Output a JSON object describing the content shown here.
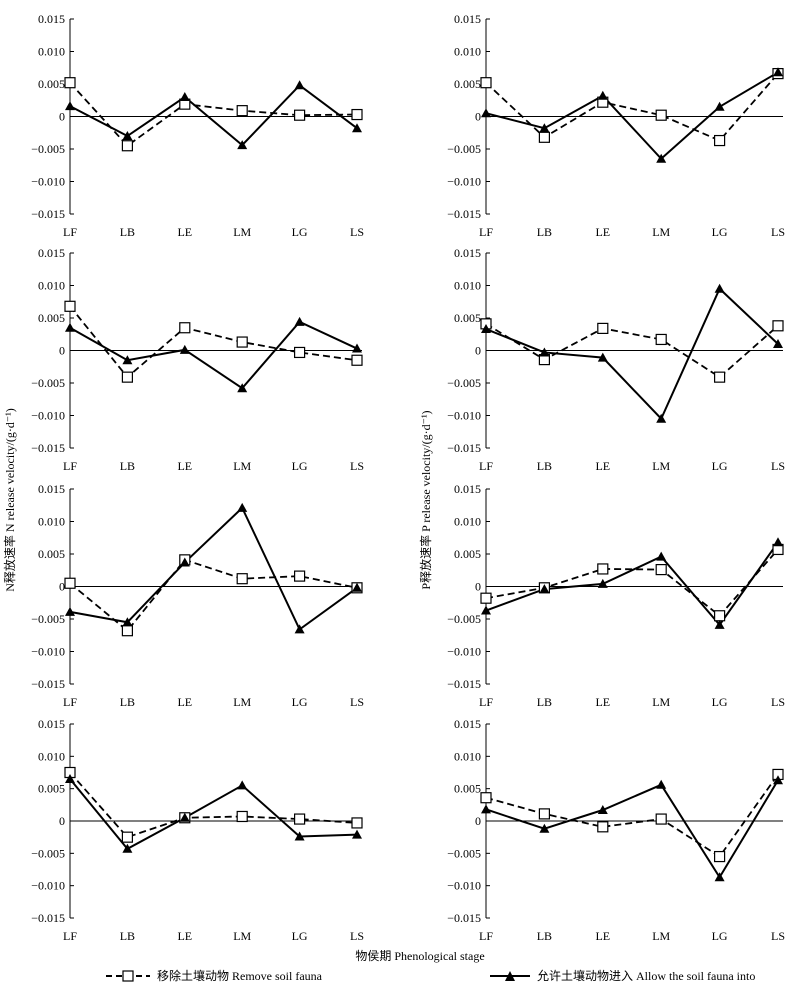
{
  "figure": {
    "xlabel": "物侯期 Phenological stage",
    "ylabel_left": "N释放速率 N release velocity/(g·d⁻¹)",
    "ylabel_right": "P释放速率 P release velocity/(g·d⁻¹)",
    "colors": {
      "line": "#000000",
      "marker_fill_removed": "#ffffff",
      "marker_fill_allowed": "#000000"
    }
  },
  "legend": {
    "removed": {
      "label": "移除土壤动物 Remove soil fauna",
      "icon": "dashed-line-open-square"
    },
    "allowed": {
      "label": "允许土壤动物进入 Allow the soil fauna into",
      "icon": "solid-line-filled-triangle"
    }
  },
  "chart_data": [
    {
      "type": "line",
      "nutrient": "N",
      "categories": [
        "LF",
        "LB",
        "LE",
        "LM",
        "LG",
        "LS"
      ],
      "ylim": [
        -0.015,
        0.015
      ],
      "yticks": [
        "0.015",
        "0.010",
        "0.005",
        "0",
        "−0.005",
        "−0.010",
        "−0.015"
      ],
      "series": [
        {
          "name": "Remove soil fauna",
          "values": [
            0.0052,
            -0.0045,
            0.0019,
            0.0009,
            0.0002,
            0.0003
          ]
        },
        {
          "name": "Allow the soil fauna into",
          "values": [
            0.0016,
            -0.003,
            0.003,
            -0.0044,
            0.0048,
            -0.0018
          ]
        }
      ]
    },
    {
      "type": "line",
      "nutrient": "P",
      "categories": [
        "LF",
        "LB",
        "LE",
        "LM",
        "LG",
        "LS"
      ],
      "ylim": [
        -0.015,
        0.015
      ],
      "yticks": [
        "0.015",
        "0.010",
        "0.005",
        "0",
        "−0.005",
        "−0.010",
        "−0.015"
      ],
      "series": [
        {
          "name": "Remove soil fauna",
          "values": [
            0.0052,
            -0.0032,
            0.0022,
            0.0002,
            -0.0037,
            0.0066
          ]
        },
        {
          "name": "Allow the soil fauna into",
          "values": [
            0.0005,
            -0.0018,
            0.0032,
            -0.0065,
            0.0015,
            0.0068
          ]
        }
      ]
    },
    {
      "type": "line",
      "nutrient": "N",
      "categories": [
        "LF",
        "LB",
        "LE",
        "LM",
        "LG",
        "LS"
      ],
      "ylim": [
        -0.015,
        0.015
      ],
      "yticks": [
        "0.015",
        "0.010",
        "0.005",
        "0",
        "−0.005",
        "−0.010",
        "−0.015"
      ],
      "series": [
        {
          "name": "Remove soil fauna",
          "values": [
            0.0068,
            -0.0041,
            0.0035,
            0.0013,
            -0.0003,
            -0.0015
          ]
        },
        {
          "name": "Allow the soil fauna into",
          "values": [
            0.0035,
            -0.0015,
            0.0001,
            -0.0058,
            0.0044,
            0.0003
          ]
        }
      ]
    },
    {
      "type": "line",
      "nutrient": "P",
      "categories": [
        "LF",
        "LB",
        "LE",
        "LM",
        "LG",
        "LS"
      ],
      "ylim": [
        -0.015,
        0.015
      ],
      "yticks": [
        "0.015",
        "0.010",
        "0.005",
        "0",
        "−0.005",
        "−0.010",
        "−0.015"
      ],
      "series": [
        {
          "name": "Remove soil fauna",
          "values": [
            0.0041,
            -0.0014,
            0.0034,
            0.0017,
            -0.0041,
            0.0038
          ]
        },
        {
          "name": "Allow the soil fauna into",
          "values": [
            0.0033,
            -0.0003,
            -0.0011,
            -0.0105,
            0.0095,
            0.001
          ]
        }
      ]
    },
    {
      "type": "line",
      "nutrient": "N",
      "categories": [
        "LF",
        "LB",
        "LE",
        "LM",
        "LG",
        "LS"
      ],
      "ylim": [
        -0.015,
        0.015
      ],
      "yticks": [
        "0.015",
        "0.010",
        "0.005",
        "0",
        "−0.005",
        "−0.010",
        "−0.015"
      ],
      "series": [
        {
          "name": "Remove soil fauna",
          "values": [
            0.0005,
            -0.0068,
            0.0041,
            0.0012,
            0.0016,
            -0.0002
          ]
        },
        {
          "name": "Allow the soil fauna into",
          "values": [
            -0.0039,
            -0.0055,
            0.0037,
            0.0121,
            -0.0066,
            -0.0002
          ]
        }
      ]
    },
    {
      "type": "line",
      "nutrient": "P",
      "categories": [
        "LF",
        "LB",
        "LE",
        "LM",
        "LG",
        "LS"
      ],
      "ylim": [
        -0.015,
        0.015
      ],
      "yticks": [
        "0.015",
        "0.010",
        "0.005",
        "0",
        "−0.005",
        "−0.010",
        "−0.015"
      ],
      "series": [
        {
          "name": "Remove soil fauna",
          "values": [
            -0.0018,
            -0.0002,
            0.0027,
            0.0026,
            -0.0045,
            0.0057
          ]
        },
        {
          "name": "Allow the soil fauna into",
          "values": [
            -0.0037,
            -0.0004,
            0.0004,
            0.0046,
            -0.0059,
            0.0068
          ]
        }
      ]
    },
    {
      "type": "line",
      "nutrient": "N",
      "categories": [
        "LF",
        "LB",
        "LE",
        "LM",
        "LG",
        "LS"
      ],
      "ylim": [
        -0.015,
        0.015
      ],
      "yticks": [
        "0.015",
        "0.010",
        "0.005",
        "0",
        "−0.005",
        "−0.010",
        "−0.015"
      ],
      "series": [
        {
          "name": "Remove soil fauna",
          "values": [
            0.0075,
            -0.0025,
            0.0005,
            0.0007,
            0.0003,
            -0.0003
          ]
        },
        {
          "name": "Allow the soil fauna into",
          "values": [
            0.0065,
            -0.0043,
            0.0005,
            0.0055,
            -0.0024,
            -0.0021
          ]
        }
      ]
    },
    {
      "type": "line",
      "nutrient": "P",
      "categories": [
        "LF",
        "LB",
        "LE",
        "LM",
        "LG",
        "LS"
      ],
      "ylim": [
        -0.015,
        0.015
      ],
      "yticks": [
        "0.015",
        "0.010",
        "0.005",
        "0",
        "−0.005",
        "−0.010",
        "−0.015"
      ],
      "series": [
        {
          "name": "Remove soil fauna",
          "values": [
            0.0036,
            0.0011,
            -0.0009,
            0.0003,
            -0.0055,
            0.0072
          ]
        },
        {
          "name": "Allow the soil fauna into",
          "values": [
            0.0018,
            -0.0012,
            0.0017,
            0.0056,
            -0.0087,
            0.0063
          ]
        }
      ]
    }
  ]
}
